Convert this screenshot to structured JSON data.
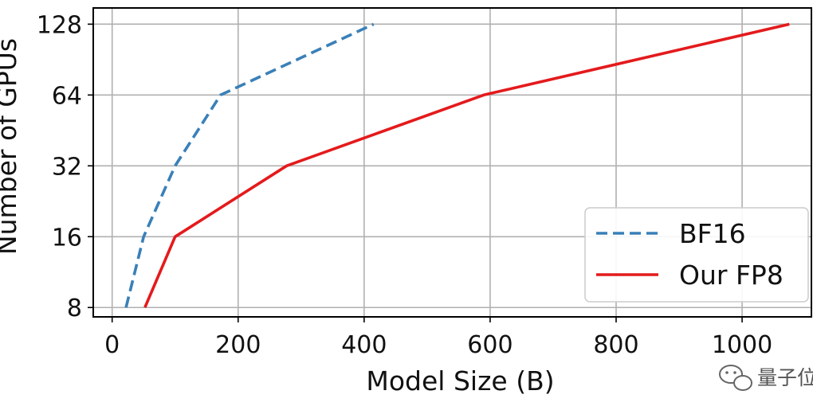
{
  "chart_data": {
    "type": "line",
    "xlabel": "Model Size (B)",
    "ylabel": "Number of GPUs",
    "xlim": [
      -30,
      1110
    ],
    "ylim": [
      7.3,
      150
    ],
    "y_scale": "log2",
    "x_ticks": [
      0,
      200,
      400,
      600,
      800,
      1000
    ],
    "y_ticks": [
      8,
      16,
      32,
      64,
      128
    ],
    "x_tick_labels": [
      "0",
      "200",
      "400",
      "600",
      "800",
      "1000"
    ],
    "y_tick_labels": [
      "8",
      "16",
      "32",
      "64",
      "128"
    ],
    "grid": true,
    "legend_position": "bottom-right",
    "series": [
      {
        "name": "BF16",
        "color": "#3a80b8",
        "dash": "dashed",
        "points": [
          [
            22,
            8
          ],
          [
            50,
            16
          ],
          [
            100,
            32
          ],
          [
            172,
            64
          ],
          [
            415,
            128
          ]
        ]
      },
      {
        "name": "Our FP8",
        "color": "#e41a1c",
        "dash": "solid",
        "points": [
          [
            52,
            8
          ],
          [
            100,
            16
          ],
          [
            277,
            32
          ],
          [
            590,
            64
          ],
          [
            1075,
            128
          ]
        ]
      }
    ]
  },
  "watermark": {
    "text": "量子位",
    "icon": "wechat-icon"
  }
}
